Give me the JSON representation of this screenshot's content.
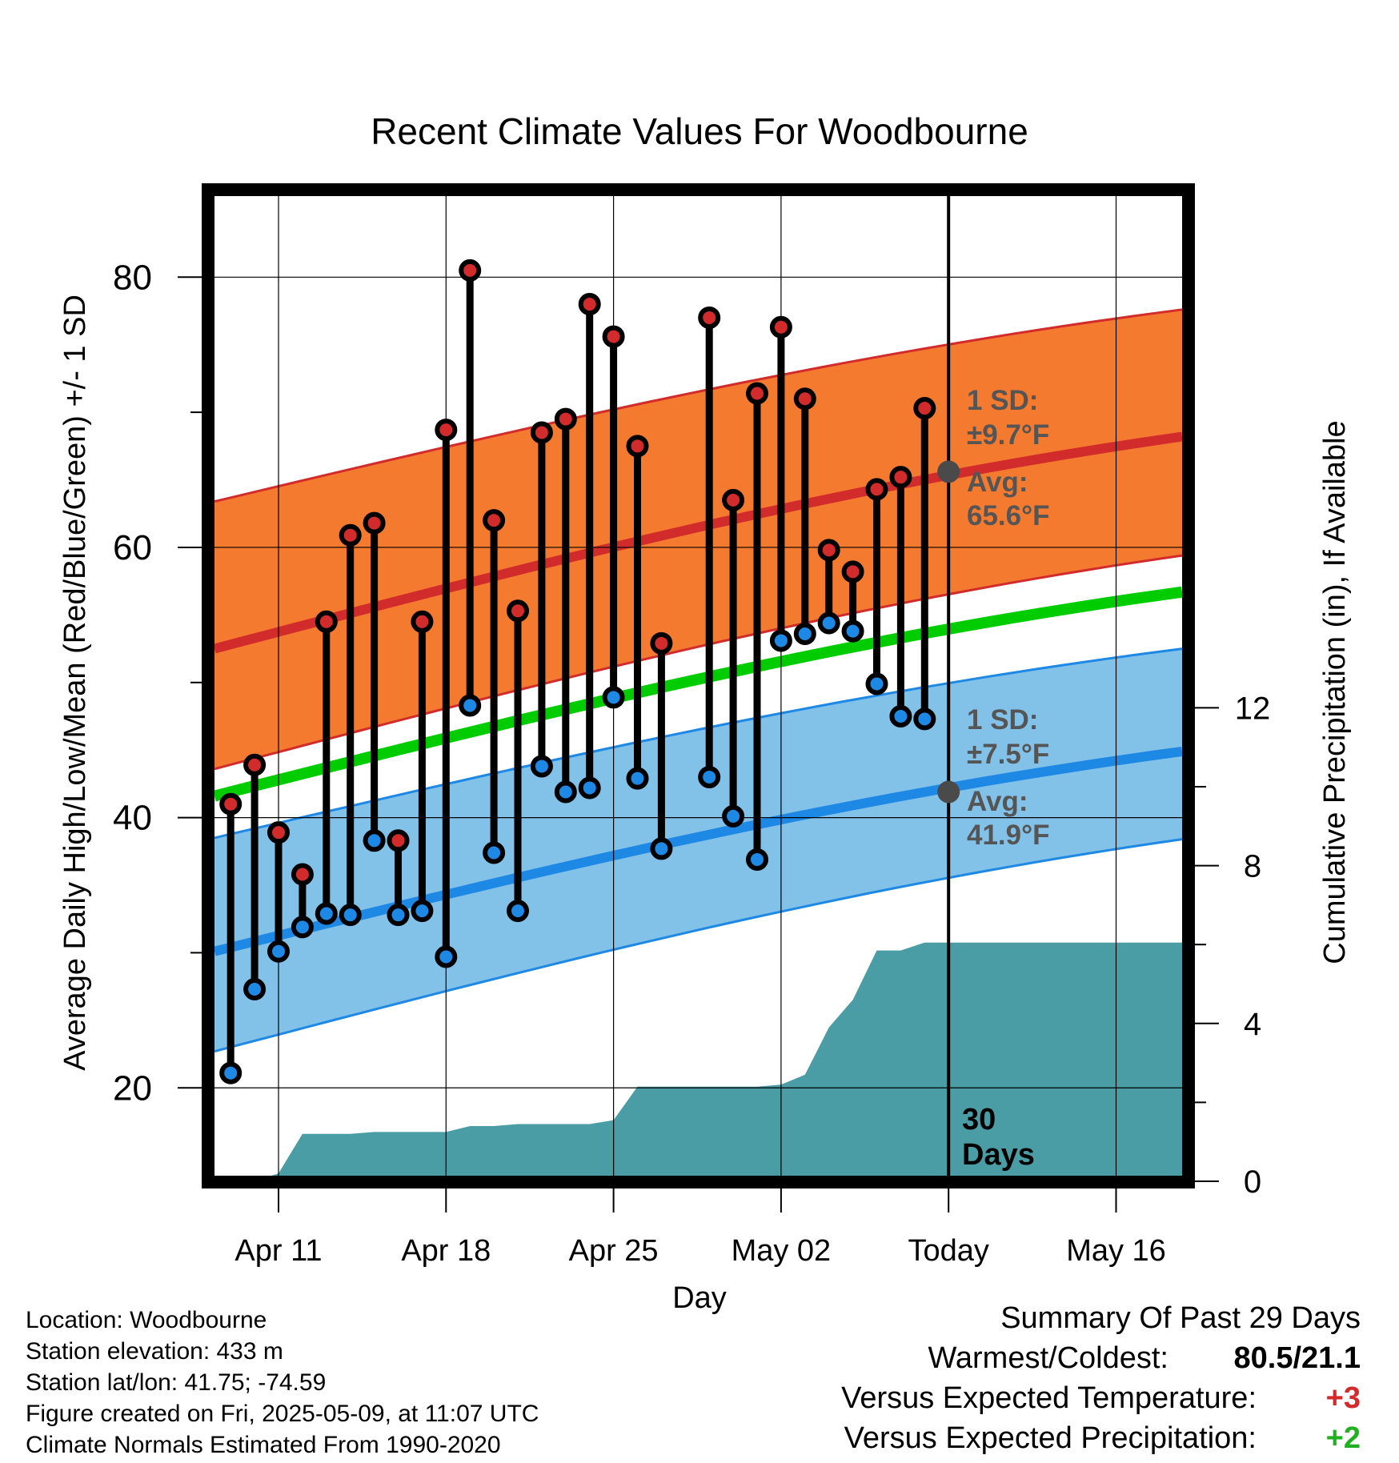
{
  "chart_data": {
    "type": "line",
    "title": "Recent Climate Values For Woodbourne",
    "xlabel": "Day",
    "ylabel": "Average Daily High/Low/Mean (Red/Blue/Green) +/- 1 SD",
    "y2label": "Cumulative Precipitation (in), If Available",
    "x_ticks": [
      "Apr 11",
      "Apr 18",
      "Apr 25",
      "May 02",
      "Today",
      "May 16"
    ],
    "x_range": [
      "2025-04-08",
      "2025-05-19"
    ],
    "ylim": [
      13.5,
      86.0
    ],
    "y_ticks": [
      20,
      40,
      60,
      80
    ],
    "y2lim": [
      0,
      30.0
    ],
    "y2_ticks": [
      0,
      4,
      8,
      12
    ],
    "grid": true,
    "series": [
      {
        "name": "High",
        "color": "#d22b2b",
        "x": [
          "2025-04-09",
          "2025-04-10",
          "2025-04-11",
          "2025-04-12",
          "2025-04-13",
          "2025-04-14",
          "2025-04-15",
          "2025-04-16",
          "2025-04-17",
          "2025-04-18",
          "2025-04-19",
          "2025-04-20",
          "2025-04-21",
          "2025-04-22",
          "2025-04-23",
          "2025-04-24",
          "2025-04-25",
          "2025-04-26",
          "2025-04-27",
          "2025-04-29",
          "2025-04-30",
          "2025-05-01",
          "2025-05-02",
          "2025-05-03",
          "2025-05-04",
          "2025-05-05",
          "2025-05-06",
          "2025-05-07",
          "2025-05-08"
        ],
        "values": [
          41.0,
          43.9,
          38.9,
          35.8,
          54.5,
          60.9,
          61.8,
          38.3,
          54.5,
          68.7,
          80.5,
          62.0,
          55.3,
          68.5,
          69.5,
          78.0,
          75.6,
          67.5,
          52.9,
          77.0,
          63.5,
          71.4,
          76.3,
          71.0,
          59.8,
          58.2,
          64.3,
          65.2,
          70.3
        ]
      },
      {
        "name": "Low",
        "color": "#1e88e5",
        "x": [
          "2025-04-09",
          "2025-04-10",
          "2025-04-11",
          "2025-04-12",
          "2025-04-13",
          "2025-04-14",
          "2025-04-15",
          "2025-04-16",
          "2025-04-17",
          "2025-04-18",
          "2025-04-19",
          "2025-04-20",
          "2025-04-21",
          "2025-04-22",
          "2025-04-23",
          "2025-04-24",
          "2025-04-25",
          "2025-04-26",
          "2025-04-27",
          "2025-04-29",
          "2025-04-30",
          "2025-05-01",
          "2025-05-02",
          "2025-05-03",
          "2025-05-04",
          "2025-05-05",
          "2025-05-06",
          "2025-05-07",
          "2025-05-08"
        ],
        "values": [
          21.1,
          27.3,
          30.1,
          31.9,
          32.9,
          32.8,
          38.3,
          32.8,
          33.1,
          29.7,
          48.3,
          37.4,
          33.1,
          43.8,
          41.9,
          42.2,
          48.9,
          42.9,
          37.7,
          43.0,
          40.1,
          36.9,
          53.1,
          53.6,
          54.4,
          53.8,
          49.9,
          47.5,
          47.3
        ]
      }
    ],
    "normals": {
      "high_mean": [
        52.5,
        68.2
      ],
      "high_sd_band": [
        [
          43.6,
          63.4
        ],
        [
          59.4,
          77.6
        ]
      ],
      "daily_mean": [
        41.6,
        56.7
      ],
      "low_mean": [
        30.1,
        44.9
      ],
      "low_sd_band": [
        [
          22.7,
          38.5
        ],
        [
          38.4,
          52.5
        ]
      ]
    },
    "precipitation": {
      "name": "Cumulative Precipitation",
      "color": "#4a9ca5",
      "x": [
        "2025-04-09",
        "2025-04-10",
        "2025-04-11",
        "2025-04-12",
        "2025-04-13",
        "2025-04-14",
        "2025-04-15",
        "2025-04-16",
        "2025-04-17",
        "2025-04-18",
        "2025-04-19",
        "2025-04-20",
        "2025-04-21",
        "2025-04-22",
        "2025-04-23",
        "2025-04-24",
        "2025-04-25",
        "2025-04-26",
        "2025-04-27",
        "2025-04-28",
        "2025-04-29",
        "2025-04-30",
        "2025-05-01",
        "2025-05-02",
        "2025-05-03",
        "2025-05-04",
        "2025-05-05",
        "2025-05-06",
        "2025-05-07",
        "2025-05-08",
        "2025-05-19"
      ],
      "values": [
        0.0,
        0.0,
        0.2,
        1.2,
        1.2,
        1.2,
        1.25,
        1.25,
        1.25,
        1.25,
        1.4,
        1.4,
        1.45,
        1.45,
        1.45,
        1.45,
        1.55,
        2.4,
        2.4,
        2.4,
        2.4,
        2.4,
        2.4,
        2.45,
        2.7,
        3.9,
        4.6,
        5.85,
        5.85,
        6.05,
        6.05
      ]
    },
    "today_line": "2025-05-09",
    "annotations": {
      "high_sd": "1 SD:",
      "high_sd_value": "±9.7°F",
      "high_avg": "Avg:",
      "high_avg_value": "65.6°F",
      "low_sd": "1 SD:",
      "low_sd_value": "±7.5°F",
      "low_avg": "Avg:",
      "low_avg_value": "41.9°F",
      "days": "30",
      "days_label": "Days",
      "high_avg_point": 65.6,
      "low_avg_point": 41.9
    }
  },
  "colors": {
    "high_band": "#f47a30",
    "high_line": "#d22b2b",
    "mean_line": "#00cc00",
    "low_band": "#82c1e8",
    "low_line": "#1e88e5",
    "precip": "#4a9ca5",
    "annotation": "#555555",
    "positive_temp": "#d22b2b",
    "positive_precip": "#22b022"
  },
  "footer": {
    "location": "Location: Woodbourne",
    "elevation": "Station elevation: 433 m",
    "latlon": "Station lat/lon: 41.75; -74.59",
    "created": "Figure created on Fri, 2025-05-09, at 11:07 UTC",
    "normals": "Climate Normals Estimated From 1990-2020"
  },
  "summary": {
    "title": "Summary Of Past 29 Days",
    "warm_cold_label": "Warmest/Coldest:",
    "warm_cold_value": "80.5/21.1",
    "temp_label": "Versus Expected Temperature:",
    "temp_value": "+3",
    "precip_label": "Versus Expected Precipitation:",
    "precip_value": "+2"
  }
}
